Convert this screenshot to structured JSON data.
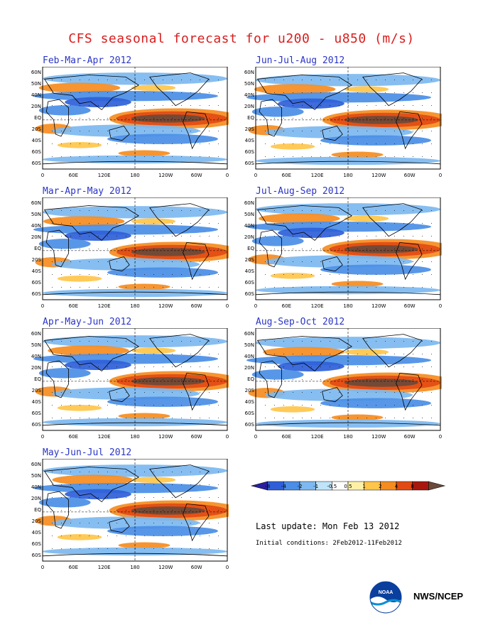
{
  "title": "CFS seasonal forecast for u200 - u850 (m/s)",
  "panels": [
    {
      "season": "Feb-Mar-Apr 2012",
      "variant": 0
    },
    {
      "season": "Jun-Jul-Aug 2012",
      "variant": 1
    },
    {
      "season": "Mar-Apr-May 2012",
      "variant": 2
    },
    {
      "season": "Jul-Aug-Sep 2012",
      "variant": 3
    },
    {
      "season": "Apr-May-Jun 2012",
      "variant": 4
    },
    {
      "season": "Aug-Sep-Oct 2012",
      "variant": 5
    },
    {
      "season": "May-Jun-Jul 2012",
      "variant": 6
    }
  ],
  "lat_labels": [
    "60N",
    "50N",
    "40N",
    "20N",
    "EQ",
    "20S",
    "40S",
    "60S",
    "60S"
  ],
  "lon_labels": [
    "0",
    "60E",
    "120E",
    "180",
    "120W",
    "60W",
    "0"
  ],
  "colorbar": {
    "labels": [
      "-8",
      "-4",
      "-2",
      "-1",
      "-0.5",
      "0.5",
      "1",
      "2",
      "4",
      "8"
    ],
    "colors": [
      "#2b1fa0",
      "#2f5fd8",
      "#4a8ee6",
      "#7db9f0",
      "#bfe4fa",
      "#ffffff",
      "#fff0a8",
      "#ffc64a",
      "#f58c1f",
      "#e24a12",
      "#a8170d",
      "#6a4a3a"
    ]
  },
  "last_update": "Last update: Mon Feb 13 2012",
  "initial_conditions": "Initial conditions: 2Feb2012-11Feb2012",
  "agency": "NWS/NCEP",
  "noaa_text": "NOAA"
}
